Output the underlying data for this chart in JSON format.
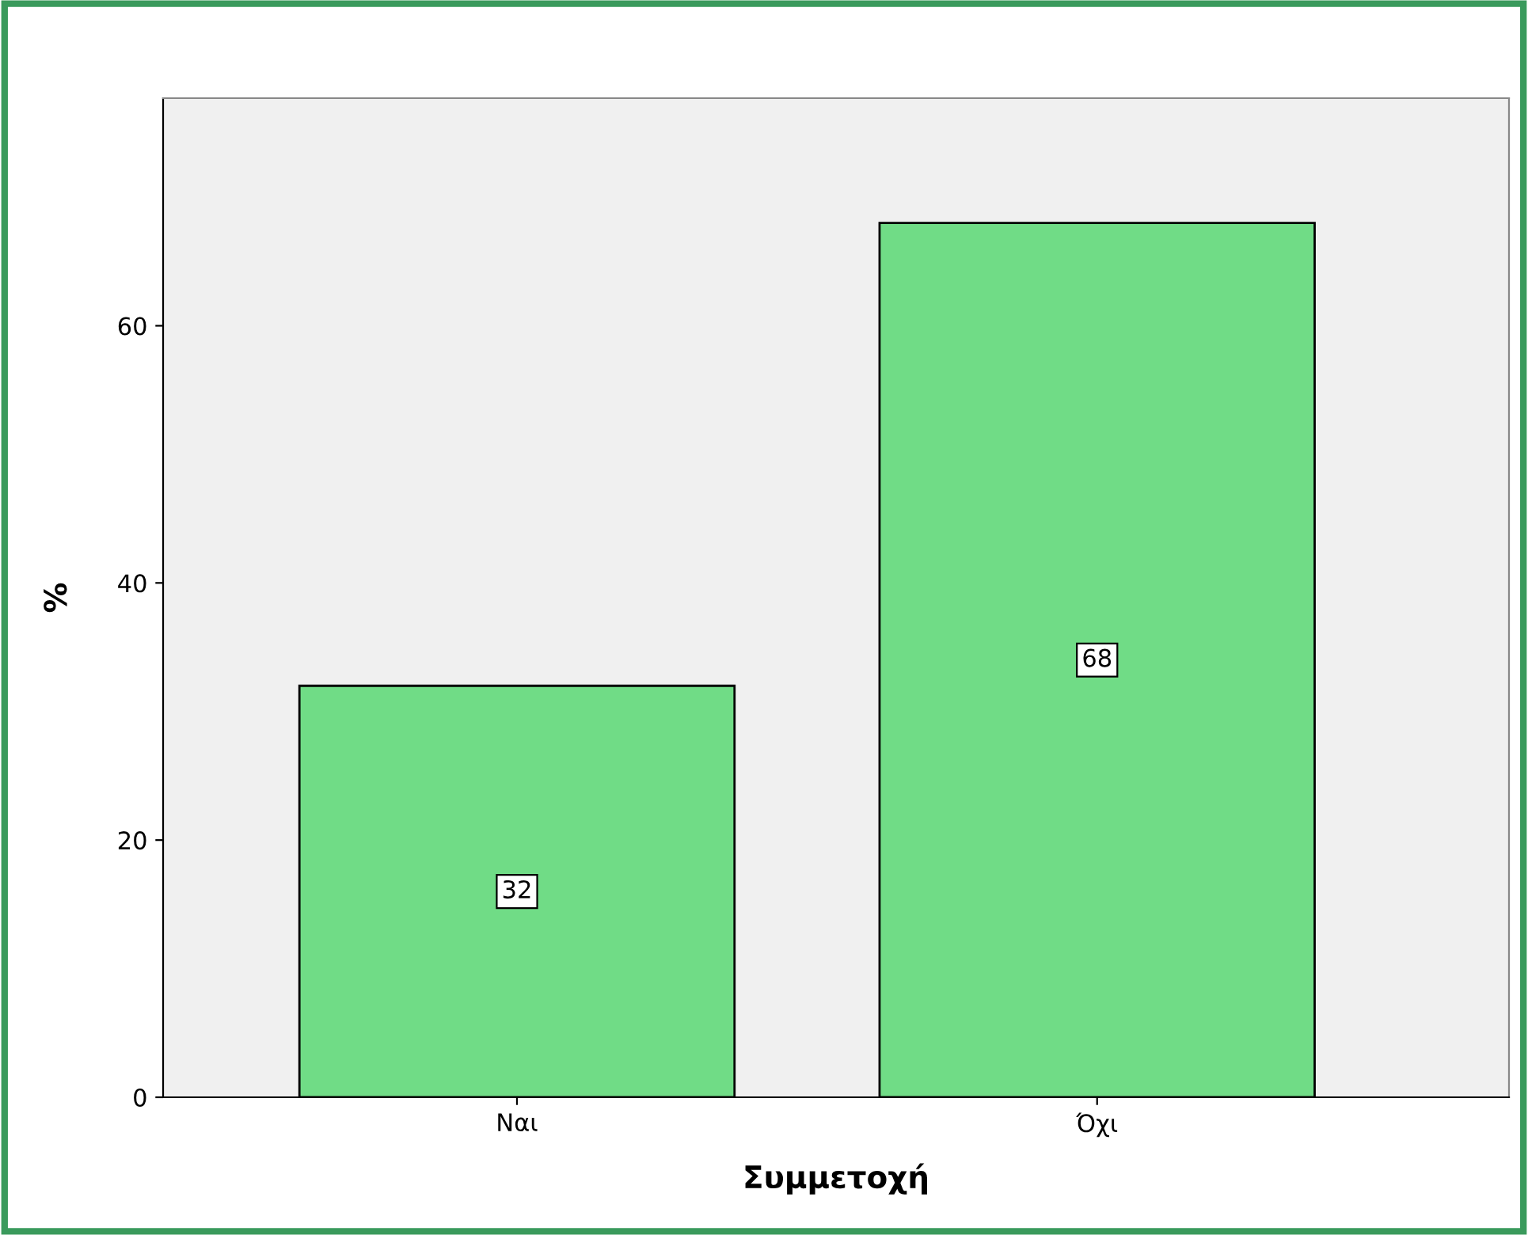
{
  "chart_data": {
    "type": "bar",
    "xlabel": "Συμμετοχή",
    "ylabel": "%",
    "categories": [
      "Ναι",
      "Όχι"
    ],
    "values": [
      32,
      68
    ],
    "color": "#70dc86",
    "ylim": [
      0,
      77.7
    ],
    "yticks": [
      0,
      20,
      40,
      60
    ],
    "grid": false,
    "data_labels": true
  }
}
